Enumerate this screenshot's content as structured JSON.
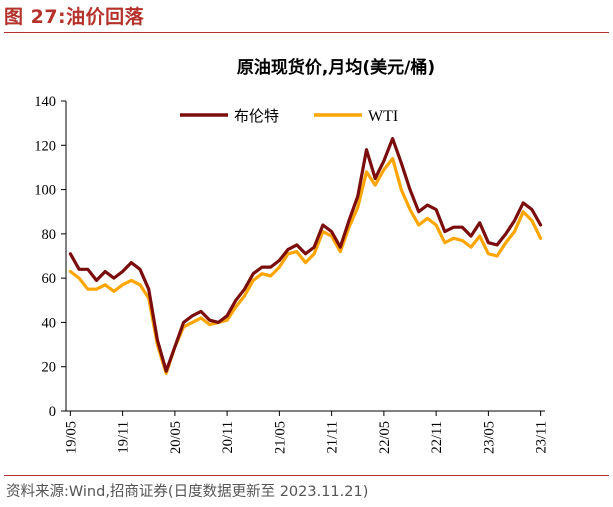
{
  "figure": {
    "label": "图 27:油价回落",
    "source": "资料来源:Wind,招商证券(日度数据更新至 2023.11.21)"
  },
  "colors": {
    "accent": "#b5312c",
    "brent": "#7b0d0d",
    "wti": "#ffa500"
  },
  "chart_data": {
    "type": "line",
    "title": "原油现货价,月均(美元/桶)",
    "xlabel": "",
    "ylabel": "",
    "ylim": [
      0,
      140
    ],
    "yticks": [
      0,
      20,
      40,
      60,
      80,
      100,
      120,
      140
    ],
    "xticks": [
      "19/05",
      "19/11",
      "20/05",
      "20/11",
      "21/05",
      "21/11",
      "22/05",
      "22/11",
      "23/05",
      "23/11"
    ],
    "legend_position": "top-center",
    "grid": false,
    "x": [
      "2019-05",
      "2019-06",
      "2019-07",
      "2019-08",
      "2019-09",
      "2019-10",
      "2019-11",
      "2019-12",
      "2020-01",
      "2020-02",
      "2020-03",
      "2020-04",
      "2020-05",
      "2020-06",
      "2020-07",
      "2020-08",
      "2020-09",
      "2020-10",
      "2020-11",
      "2020-12",
      "2021-01",
      "2021-02",
      "2021-03",
      "2021-04",
      "2021-05",
      "2021-06",
      "2021-07",
      "2021-08",
      "2021-09",
      "2021-10",
      "2021-11",
      "2021-12",
      "2022-01",
      "2022-02",
      "2022-03",
      "2022-04",
      "2022-05",
      "2022-06",
      "2022-07",
      "2022-08",
      "2022-09",
      "2022-10",
      "2022-11",
      "2022-12",
      "2023-01",
      "2023-02",
      "2023-03",
      "2023-04",
      "2023-05",
      "2023-06",
      "2023-07",
      "2023-08",
      "2023-09",
      "2023-10",
      "2023-11"
    ],
    "series": [
      {
        "name": "布伦特",
        "values": [
          71,
          64,
          64,
          59,
          63,
          60,
          63,
          67,
          64,
          55,
          32,
          18,
          29,
          40,
          43,
          45,
          41,
          40,
          43,
          50,
          55,
          62,
          65,
          65,
          68,
          73,
          75,
          71,
          74,
          84,
          81,
          74,
          86,
          97,
          118,
          105,
          113,
          123,
          112,
          100,
          90,
          93,
          91,
          81,
          83,
          83,
          79,
          85,
          76,
          75,
          80,
          86,
          94,
          91,
          84
        ]
      },
      {
        "name": "WTI",
        "values": [
          63,
          60,
          55,
          55,
          57,
          54,
          57,
          59,
          57,
          51,
          30,
          17,
          29,
          38,
          40,
          42,
          39,
          40,
          41,
          47,
          52,
          59,
          62,
          61,
          65,
          71,
          72,
          67,
          71,
          81,
          79,
          72,
          83,
          92,
          108,
          102,
          109,
          114,
          100,
          91,
          84,
          87,
          84,
          76,
          78,
          77,
          74,
          79,
          71,
          70,
          76,
          81,
          90,
          86,
          78
        ]
      }
    ]
  }
}
